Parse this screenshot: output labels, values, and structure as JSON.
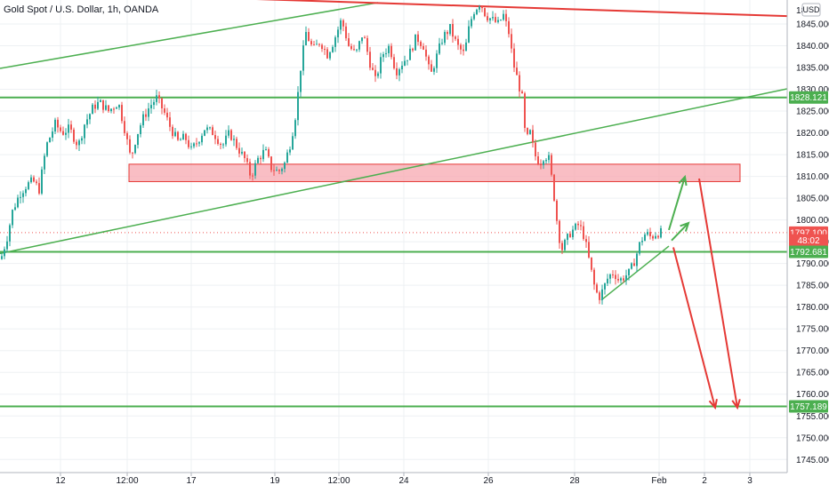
{
  "header": {
    "title": "Gold Spot / U.S. Dollar, 1h, OANDA",
    "currency_badge": "USD",
    "top_axis_label": "18"
  },
  "colors": {
    "up": "#26a69a",
    "down": "#ef5350",
    "support": "#4caf50",
    "resistance": "#e53935",
    "zone_fill": "#f7a8b0",
    "zone_stroke": "#e53935"
  },
  "chart_data": {
    "type": "candlestick",
    "symbol": "XAUUSD",
    "timeframe": "1h",
    "source": "OANDA",
    "ylim": [
      1742,
      1850.5
    ],
    "y_ticks": [
      "1745.000",
      "1750.000",
      "1755.000",
      "1760.000",
      "1765.000",
      "1770.000",
      "1775.000",
      "1780.000",
      "1785.000",
      "1790.000",
      "1795.000",
      "1800.000",
      "1805.000",
      "1810.000",
      "1815.000",
      "1820.000",
      "1825.000",
      "1830.000",
      "1835.000",
      "1840.000",
      "1845.000"
    ],
    "x_ticks": [
      "12",
      "12:00",
      "17",
      "19",
      "12:00",
      "24",
      "26",
      "28",
      "Feb",
      "2",
      "3"
    ],
    "price_labels": [
      {
        "text": "1828.121",
        "value": 1828.121,
        "kind": "support"
      },
      {
        "text": "1797.100",
        "value": 1797.1,
        "kind": "last"
      },
      {
        "text": "48:02",
        "value": 1795.3,
        "kind": "countdown"
      },
      {
        "text": "1792.681",
        "value": 1792.681,
        "kind": "support"
      },
      {
        "text": "1757.189",
        "value": 1757.189,
        "kind": "support"
      }
    ],
    "horizontal_levels": [
      1828.121,
      1792.681,
      1757.189
    ],
    "resistance_zone": [
      1808.8,
      1812.8
    ],
    "price_path": [
      {
        "x": 1,
        "y": 1791
      },
      {
        "x": 8,
        "y": 1796
      },
      {
        "x": 14,
        "y": 1802
      },
      {
        "x": 22,
        "y": 1806
      },
      {
        "x": 30,
        "y": 1808
      },
      {
        "x": 37,
        "y": 1809
      },
      {
        "x": 44,
        "y": 1807
      },
      {
        "x": 52,
        "y": 1817
      },
      {
        "x": 62,
        "y": 1822
      },
      {
        "x": 70,
        "y": 1820
      },
      {
        "x": 78,
        "y": 1821
      },
      {
        "x": 88,
        "y": 1817
      },
      {
        "x": 95,
        "y": 1822
      },
      {
        "x": 105,
        "y": 1826
      },
      {
        "x": 112,
        "y": 1827
      },
      {
        "x": 122,
        "y": 1825
      },
      {
        "x": 133,
        "y": 1827
      },
      {
        "x": 140,
        "y": 1821
      },
      {
        "x": 147,
        "y": 1814
      },
      {
        "x": 153,
        "y": 1819
      },
      {
        "x": 160,
        "y": 1823
      },
      {
        "x": 168,
        "y": 1826
      },
      {
        "x": 176,
        "y": 1828
      },
      {
        "x": 184,
        "y": 1825
      },
      {
        "x": 192,
        "y": 1821
      },
      {
        "x": 200,
        "y": 1818
      },
      {
        "x": 208,
        "y": 1819
      },
      {
        "x": 215,
        "y": 1816
      },
      {
        "x": 222,
        "y": 1818
      },
      {
        "x": 230,
        "y": 1821
      },
      {
        "x": 240,
        "y": 1820
      },
      {
        "x": 250,
        "y": 1817
      },
      {
        "x": 258,
        "y": 1820
      },
      {
        "x": 266,
        "y": 1817
      },
      {
        "x": 275,
        "y": 1814
      },
      {
        "x": 282,
        "y": 1810
      },
      {
        "x": 290,
        "y": 1814
      },
      {
        "x": 298,
        "y": 1816
      },
      {
        "x": 305,
        "y": 1812
      },
      {
        "x": 313,
        "y": 1811
      },
      {
        "x": 320,
        "y": 1813
      },
      {
        "x": 327,
        "y": 1818
      },
      {
        "x": 333,
        "y": 1825
      },
      {
        "x": 338,
        "y": 1835
      },
      {
        "x": 344,
        "y": 1843
      },
      {
        "x": 352,
        "y": 1839
      },
      {
        "x": 360,
        "y": 1841
      },
      {
        "x": 368,
        "y": 1838
      },
      {
        "x": 375,
        "y": 1841
      },
      {
        "x": 384,
        "y": 1846
      },
      {
        "x": 392,
        "y": 1840
      },
      {
        "x": 400,
        "y": 1838
      },
      {
        "x": 408,
        "y": 1843
      },
      {
        "x": 416,
        "y": 1836
      },
      {
        "x": 422,
        "y": 1832
      },
      {
        "x": 430,
        "y": 1838
      },
      {
        "x": 438,
        "y": 1840
      },
      {
        "x": 445,
        "y": 1834
      },
      {
        "x": 452,
        "y": 1836
      },
      {
        "x": 460,
        "y": 1838
      },
      {
        "x": 468,
        "y": 1842
      },
      {
        "x": 476,
        "y": 1840
      },
      {
        "x": 484,
        "y": 1833
      },
      {
        "x": 490,
        "y": 1837
      },
      {
        "x": 498,
        "y": 1842
      },
      {
        "x": 506,
        "y": 1844
      },
      {
        "x": 514,
        "y": 1840
      },
      {
        "x": 522,
        "y": 1838
      },
      {
        "x": 528,
        "y": 1845
      },
      {
        "x": 533,
        "y": 1848
      },
      {
        "x": 540,
        "y": 1850
      },
      {
        "x": 546,
        "y": 1847
      },
      {
        "x": 553,
        "y": 1846
      },
      {
        "x": 560,
        "y": 1845
      },
      {
        "x": 566,
        "y": 1847
      },
      {
        "x": 572,
        "y": 1843
      },
      {
        "x": 577,
        "y": 1836
      },
      {
        "x": 582,
        "y": 1832
      },
      {
        "x": 587,
        "y": 1828
      },
      {
        "x": 591,
        "y": 1818
      },
      {
        "x": 596,
        "y": 1820
      },
      {
        "x": 601,
        "y": 1815
      },
      {
        "x": 607,
        "y": 1813
      },
      {
        "x": 612,
        "y": 1815
      },
      {
        "x": 617,
        "y": 1814
      },
      {
        "x": 622,
        "y": 1807
      },
      {
        "x": 626,
        "y": 1800
      },
      {
        "x": 631,
        "y": 1793
      },
      {
        "x": 636,
        "y": 1795
      },
      {
        "x": 641,
        "y": 1797
      },
      {
        "x": 646,
        "y": 1798
      },
      {
        "x": 651,
        "y": 1799
      },
      {
        "x": 657,
        "y": 1796
      },
      {
        "x": 663,
        "y": 1790
      },
      {
        "x": 668,
        "y": 1785
      },
      {
        "x": 673,
        "y": 1782
      },
      {
        "x": 678,
        "y": 1784
      },
      {
        "x": 684,
        "y": 1787
      },
      {
        "x": 690,
        "y": 1788
      },
      {
        "x": 696,
        "y": 1786
      },
      {
        "x": 702,
        "y": 1787
      },
      {
        "x": 708,
        "y": 1788
      },
      {
        "x": 714,
        "y": 1791
      },
      {
        "x": 720,
        "y": 1795
      },
      {
        "x": 726,
        "y": 1797
      },
      {
        "x": 732,
        "y": 1796
      },
      {
        "x": 738,
        "y": 1797
      },
      {
        "x": 744,
        "y": 1797.1
      }
    ],
    "trendlines": [
      {
        "name": "upper-green-channel",
        "color": "support",
        "points": [
          {
            "x": 0,
            "y": 1834.8
          },
          {
            "x": 425,
            "y": 1849.9
          }
        ]
      },
      {
        "name": "lower-green-channel",
        "color": "support",
        "points": [
          {
            "x": 0,
            "y": 1792.3
          },
          {
            "x": 885,
            "y": 1830.1
          }
        ]
      },
      {
        "name": "red-resistance",
        "color": "resistance",
        "points": [
          {
            "x": 243,
            "y": 1851
          },
          {
            "x": 885,
            "y": 1846.8
          }
        ]
      },
      {
        "name": "rising-support",
        "color": "support",
        "points": [
          {
            "x": 676,
            "y": 1781.6
          },
          {
            "x": 752,
            "y": 1794
          }
        ]
      }
    ],
    "arrows": [
      {
        "name": "up-arrow-1",
        "color": "support",
        "from": {
          "x": 752,
          "y": 1797.7
        },
        "to": {
          "x": 770,
          "y": 1809.9
        }
      },
      {
        "name": "up-arrow-2",
        "color": "support",
        "from": {
          "x": 755,
          "y": 1795.3
        },
        "to": {
          "x": 774,
          "y": 1799.3
        }
      },
      {
        "name": "down-arrow-1",
        "color": "resistance",
        "from": {
          "x": 757,
          "y": 1793.7
        },
        "to": {
          "x": 804,
          "y": 1756.9
        }
      },
      {
        "name": "down-arrow-2",
        "color": "resistance",
        "from": {
          "x": 786,
          "y": 1809.5
        },
        "to": {
          "x": 829,
          "y": 1756.9
        }
      }
    ]
  }
}
